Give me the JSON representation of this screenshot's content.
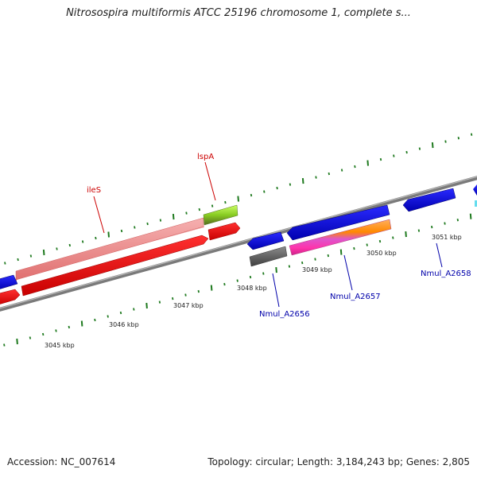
{
  "title": "Nitrosospira multiformis ATCC 25196 chromosome 1, complete s...",
  "footer": {
    "accession": "Accession: NC_007614",
    "stats": "Topology: circular; Length: 3,184,243 bp; Genes: 2,805"
  },
  "colors": {
    "backbone": "#808080",
    "tick": "#1f7a1f",
    "forward_label": "#cc0000",
    "reverse_label": "#0000aa"
  },
  "ticks": [
    {
      "label": "3045 kbp",
      "strand": "reverse"
    },
    {
      "label": "3046 kbp",
      "strand": "reverse"
    },
    {
      "label": "3047 kbp",
      "strand": "reverse"
    },
    {
      "label": "3048 kbp",
      "strand": "reverse"
    },
    {
      "label": "3049 kbp",
      "strand": "reverse"
    },
    {
      "label": "3050 kbp",
      "strand": "reverse"
    },
    {
      "label": "3051 kbp",
      "strand": "reverse"
    }
  ],
  "gene_labels": [
    {
      "name": "ileS",
      "strand": "forward"
    },
    {
      "name": "lspA",
      "strand": "forward"
    },
    {
      "name": "Nmul_A2656",
      "strand": "reverse"
    },
    {
      "name": "Nmul_A2657",
      "strand": "reverse"
    },
    {
      "name": "Nmul_A2658",
      "strand": "reverse"
    }
  ],
  "features": [
    {
      "name": "ileS-rna-track",
      "strand": "forward",
      "color": "#f08a8a"
    },
    {
      "name": "ileS-gene",
      "strand": "forward",
      "color": "#ff0000"
    },
    {
      "name": "lspA-rna-track",
      "strand": "forward",
      "color": "#99dd33"
    },
    {
      "name": "lspA-gene",
      "strand": "forward",
      "color": "#ff0000"
    },
    {
      "name": "left-edge-gene",
      "strand": "reverse",
      "color": "#0000ee"
    },
    {
      "name": "left-edge-red-gene",
      "strand": "forward",
      "color": "#ff0000"
    },
    {
      "name": "Nmul_A2656-gene",
      "strand": "reverse",
      "color": "#0000ee"
    },
    {
      "name": "Nmul_A2656-track",
      "strand": "reverse",
      "color": "#666666"
    },
    {
      "name": "Nmul_A2657-gene",
      "strand": "reverse",
      "color": "#0000ee"
    },
    {
      "name": "Nmul_A2657-track",
      "strand": "reverse",
      "color": "#ff8800"
    },
    {
      "name": "Nmul_A2658-gene",
      "strand": "reverse",
      "color": "#0000ee"
    },
    {
      "name": "right-edge-gene",
      "strand": "reverse",
      "color": "#0000ee"
    }
  ]
}
